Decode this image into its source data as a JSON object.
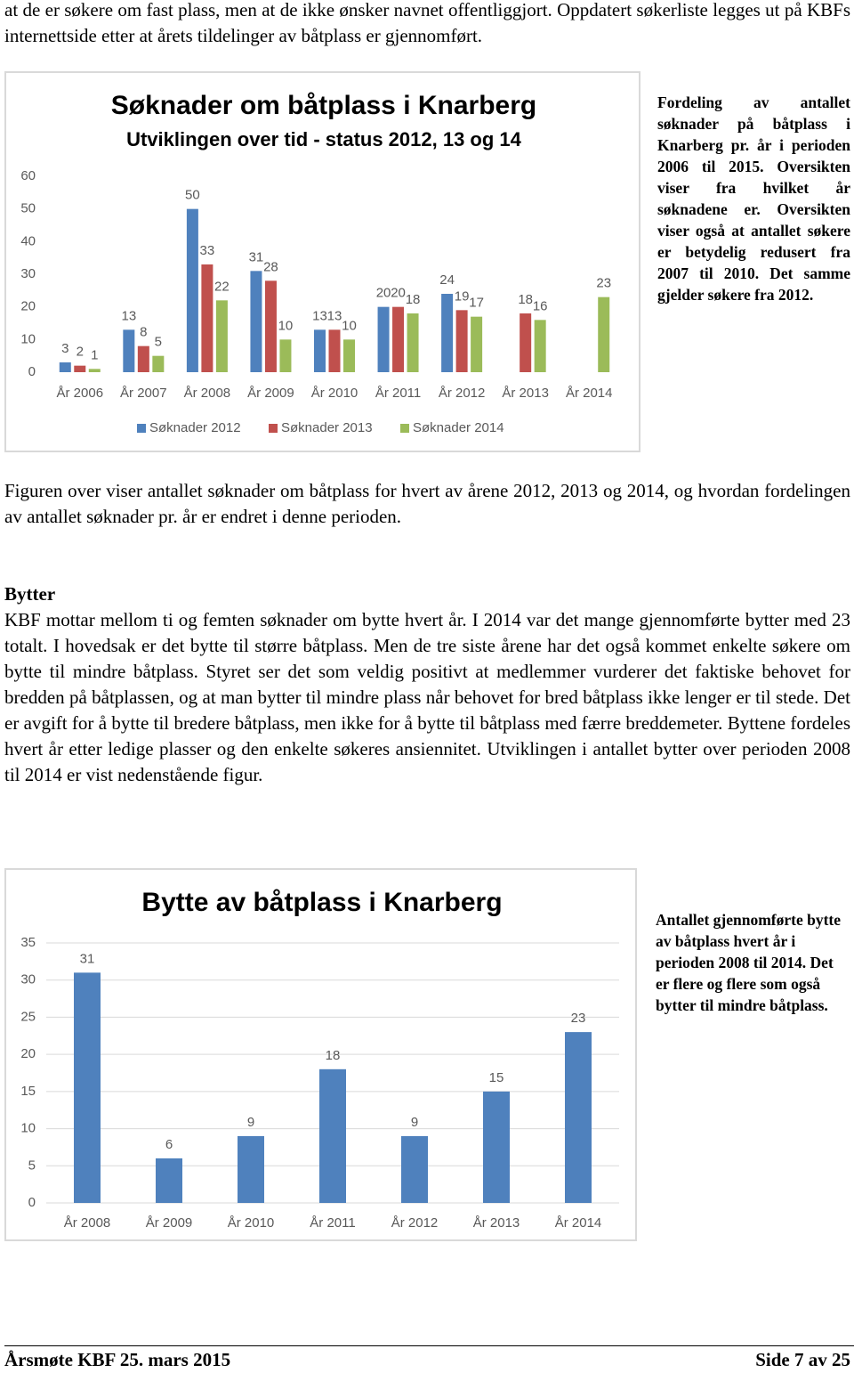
{
  "intro": "at de er søkere om fast plass, men at de ikke ønsker navnet offentliggjort.  Oppdatert søkerliste legges ut på KBFs internettside etter at årets tildelinger av båtplass er gjennomført.",
  "chart_data": [
    {
      "type": "bar",
      "title": "Søknader om båtplass i Knarberg",
      "subtitle": "Utviklingen over tid - status 2012, 13 og 14",
      "categories": [
        "År 2006",
        "År 2007",
        "År 2008",
        "År 2009",
        "År 2010",
        "År 2011",
        "År 2012",
        "År 2013",
        "År 2014"
      ],
      "series": [
        {
          "name": "Søknader 2012",
          "color": "#4f81bd",
          "values": [
            3,
            13,
            50,
            31,
            13,
            20,
            24,
            null,
            null
          ]
        },
        {
          "name": "Søknader 2013",
          "color": "#c0504d",
          "values": [
            2,
            8,
            33,
            28,
            13,
            20,
            19,
            18,
            null
          ]
        },
        {
          "name": "Søknader 2014",
          "color": "#9bbb59",
          "values": [
            1,
            5,
            22,
            10,
            10,
            18,
            17,
            16,
            23
          ]
        }
      ],
      "ylim": [
        0,
        60
      ],
      "yticks": [
        0,
        10,
        20,
        30,
        40,
        50,
        60
      ],
      "grid": false,
      "legend": "bottom"
    },
    {
      "type": "bar",
      "title": "Bytte av båtplass i Knarberg",
      "categories": [
        "År 2008",
        "År 2009",
        "År 2010",
        "År 2011",
        "År 2012",
        "År 2013",
        "År 2014"
      ],
      "series": [
        {
          "name": "Bytter",
          "color": "#4f81bd",
          "values": [
            31,
            6,
            9,
            18,
            9,
            15,
            23
          ]
        }
      ],
      "ylim": [
        0,
        35
      ],
      "yticks": [
        0,
        5,
        10,
        15,
        20,
        25,
        30,
        35
      ],
      "grid": true,
      "legend": "none"
    }
  ],
  "chart1_note": "Fordeling av antallet søknader på båtplass i Knarberg pr. år i perioden 2006 til 2015. Oversikten viser fra hvilket år søknadene er. Oversikten viser også at antallet søkere er betydelig redusert fra 2007 til 2010. Det samme gjelder søkere fra 2012.",
  "paragraph1": "Figuren over viser antallet søknader om båtplass for hvert av årene 2012, 2013 og 2014, og hvordan fordelingen av antallet søknader pr. år er endret i denne perioden.",
  "section": {
    "heading": "Bytter",
    "text": "KBF mottar mellom ti og femten søknader om bytte hvert år. I 2014 var det mange gjennomførte bytter med 23 totalt. I hovedsak er det bytte til større båtplass.  Men de tre siste årene har det også kommet enkelte søkere om bytte til mindre båtplass. Styret ser det som veldig positivt at medlemmer vurderer det faktiske behovet for bredden på båtplassen, og at man bytter til mindre plass når behovet for bred båtplass ikke lenger er til stede.  Det er avgift for å bytte til bredere båtplass, men ikke for å bytte til båtplass med færre breddemeter. Byttene fordeles hvert år etter ledige plasser og den enkelte søkeres ansiennitet.  Utviklingen i antallet bytter over perioden 2008 til 2014 er vist nedenstående figur."
  },
  "chart2_note": "Antallet gjennomførte bytte av båtplass hvert år i perioden 2008 til 2014.  Det er flere og flere som også bytter til mindre båtplass.",
  "footer": {
    "left": "Årsmøte KBF 25. mars 2015",
    "right": "Side 7 av 25"
  }
}
